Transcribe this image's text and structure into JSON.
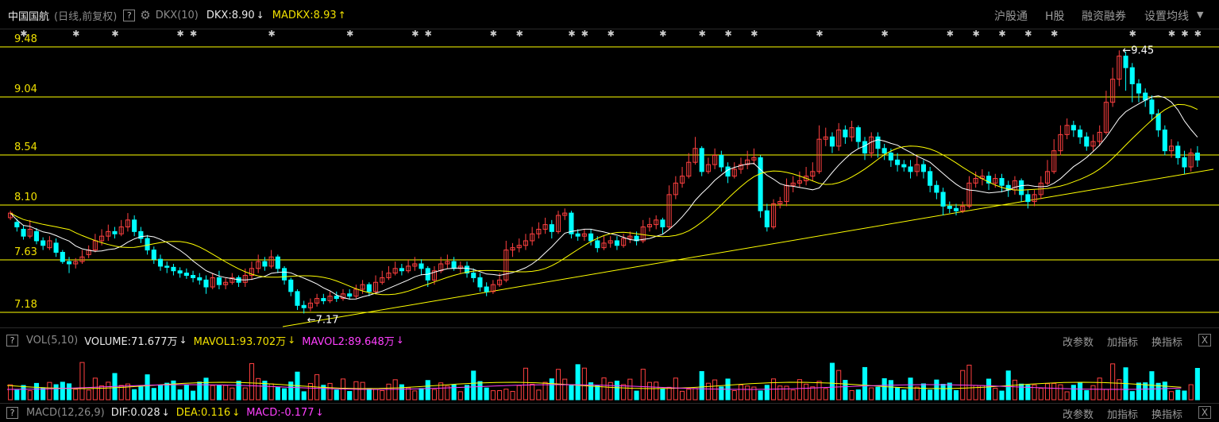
{
  "top_bar": {
    "stock_name": "中国国航",
    "period_info": "(日线,前复权)",
    "help_label": "?",
    "indicator_name": "DKX(10)",
    "dkx": "DKX:8.90",
    "dkx_dir": "↓",
    "madkx": "MADKX:8.93",
    "madkx_dir": "↑",
    "menu": [
      "沪股通",
      "H股",
      "融资融券",
      "设置均线"
    ]
  },
  "price_axis": {
    "levels": [
      "9.48",
      "9.04",
      "8.54",
      "8.10",
      "7.63",
      "7.18"
    ]
  },
  "price_annotations": {
    "high_label": "9.45",
    "low_label": "7.17"
  },
  "volume_panel": {
    "name": "VOL(5,10)",
    "volume": "VOLUME:71.677万",
    "volume_dir": "↓",
    "mavol1": "MAVOL1:93.702万",
    "mavol1_dir": "↓",
    "mavol2": "MAVOL2:89.648万",
    "mavol2_dir": "↓",
    "buttons": [
      "改参数",
      "加指标",
      "换指标"
    ],
    "close_label": "X"
  },
  "macd_panel": {
    "name": "MACD(12,26,9)",
    "dif": "DIF:0.028",
    "dif_dir": "↓",
    "dea": "DEA:0.116",
    "dea_dir": "↓",
    "macd": "MACD:-0.177",
    "macd_dir": "↓",
    "buttons": [
      "改参数",
      "加指标",
      "换指标"
    ],
    "close_label": "X"
  },
  "colors": {
    "up": "#ff4040",
    "down": "#00ffff",
    "dkx_line": "#ffffff",
    "madkx_line": "#ffff00",
    "level_line": "#ffff00",
    "star": "#cccccc"
  },
  "chart_data": {
    "type": "candlestick",
    "y_axis_levels": [
      9.48,
      9.04,
      8.54,
      8.1,
      7.63,
      7.18
    ],
    "y_range": [
      7.0,
      9.6
    ],
    "candles": [
      [
        8.0,
        8.04,
        8.06,
        7.98
      ],
      [
        7.96,
        7.92,
        7.99,
        7.88
      ],
      [
        7.9,
        7.84,
        7.93,
        7.81
      ],
      [
        7.84,
        7.9,
        7.98,
        7.82
      ],
      [
        7.88,
        7.8,
        7.91,
        7.77
      ],
      [
        7.8,
        7.76,
        7.83,
        7.72
      ],
      [
        7.74,
        7.8,
        7.84,
        7.72
      ],
      [
        7.78,
        7.7,
        7.82,
        7.66
      ],
      [
        7.7,
        7.62,
        7.72,
        7.6
      ],
      [
        7.62,
        7.6,
        7.66,
        7.52
      ],
      [
        7.6,
        7.62,
        7.65,
        7.56
      ],
      [
        7.62,
        7.66,
        7.72,
        7.6
      ],
      [
        7.68,
        7.72,
        7.76,
        7.65
      ],
      [
        7.72,
        7.8,
        7.86,
        7.7
      ],
      [
        7.8,
        7.84,
        7.9,
        7.76
      ],
      [
        7.84,
        7.88,
        7.94,
        7.8
      ],
      [
        7.88,
        7.86,
        7.92,
        7.82
      ],
      [
        7.86,
        7.92,
        7.98,
        7.84
      ],
      [
        7.92,
        7.98,
        8.04,
        7.88
      ],
      [
        7.98,
        7.88,
        8.02,
        7.84
      ],
      [
        7.88,
        7.82,
        7.92,
        7.78
      ],
      [
        7.82,
        7.72,
        7.85,
        7.68
      ],
      [
        7.72,
        7.64,
        7.75,
        7.6
      ],
      [
        7.64,
        7.58,
        7.68,
        7.54
      ],
      [
        7.58,
        7.57,
        7.62,
        7.52
      ],
      [
        7.57,
        7.54,
        7.6,
        7.5
      ],
      [
        7.54,
        7.52,
        7.57,
        7.48
      ],
      [
        7.52,
        7.5,
        7.56,
        7.47
      ],
      [
        7.5,
        7.48,
        7.54,
        7.44
      ],
      [
        7.48,
        7.46,
        7.52,
        7.42
      ],
      [
        7.46,
        7.4,
        7.5,
        7.34
      ],
      [
        7.4,
        7.48,
        7.52,
        7.38
      ],
      [
        7.48,
        7.42,
        7.54,
        7.38
      ],
      [
        7.42,
        7.44,
        7.48,
        7.38
      ],
      [
        7.44,
        7.48,
        7.52,
        7.42
      ],
      [
        7.48,
        7.44,
        7.5,
        7.4
      ],
      [
        7.44,
        7.5,
        7.56,
        7.4
      ],
      [
        7.5,
        7.56,
        7.62,
        7.46
      ],
      [
        7.56,
        7.62,
        7.68,
        7.52
      ],
      [
        7.62,
        7.58,
        7.66,
        7.54
      ],
      [
        7.58,
        7.66,
        7.72,
        7.56
      ],
      [
        7.66,
        7.56,
        7.68,
        7.52
      ],
      [
        7.56,
        7.46,
        7.58,
        7.42
      ],
      [
        7.46,
        7.36,
        7.48,
        7.32
      ],
      [
        7.36,
        7.24,
        7.38,
        7.2
      ],
      [
        7.24,
        7.22,
        7.28,
        7.17
      ],
      [
        7.22,
        7.26,
        7.3,
        7.19
      ],
      [
        7.26,
        7.3,
        7.34,
        7.23
      ],
      [
        7.3,
        7.28,
        7.34,
        7.25
      ],
      [
        7.28,
        7.32,
        7.36,
        7.26
      ],
      [
        7.32,
        7.3,
        7.36,
        7.27
      ],
      [
        7.3,
        7.34,
        7.38,
        7.28
      ],
      [
        7.34,
        7.32,
        7.38,
        7.29
      ],
      [
        7.32,
        7.38,
        7.42,
        7.3
      ],
      [
        7.38,
        7.42,
        7.46,
        7.34
      ],
      [
        7.42,
        7.36,
        7.44,
        7.32
      ],
      [
        7.36,
        7.44,
        7.5,
        7.34
      ],
      [
        7.44,
        7.48,
        7.54,
        7.42
      ],
      [
        7.48,
        7.52,
        7.58,
        7.46
      ],
      [
        7.52,
        7.56,
        7.62,
        7.5
      ],
      [
        7.56,
        7.54,
        7.6,
        7.5
      ],
      [
        7.54,
        7.58,
        7.64,
        7.52
      ],
      [
        7.58,
        7.6,
        7.66,
        7.54
      ],
      [
        7.6,
        7.56,
        7.64,
        7.5
      ],
      [
        7.56,
        7.46,
        7.58,
        7.4
      ],
      [
        7.46,
        7.54,
        7.58,
        7.42
      ],
      [
        7.54,
        7.6,
        7.66,
        7.52
      ],
      [
        7.6,
        7.62,
        7.68,
        7.56
      ],
      [
        7.62,
        7.56,
        7.66,
        7.54
      ],
      [
        7.56,
        7.58,
        7.62,
        7.52
      ],
      [
        7.58,
        7.52,
        7.62,
        7.48
      ],
      [
        7.52,
        7.48,
        7.56,
        7.44
      ],
      [
        7.48,
        7.4,
        7.52,
        7.36
      ],
      [
        7.4,
        7.36,
        7.44,
        7.32
      ],
      [
        7.36,
        7.42,
        7.46,
        7.34
      ],
      [
        7.42,
        7.46,
        7.52,
        7.4
      ],
      [
        7.46,
        7.72,
        7.8,
        7.44
      ],
      [
        7.72,
        7.74,
        7.78,
        7.66
      ],
      [
        7.74,
        7.76,
        7.82,
        7.7
      ],
      [
        7.76,
        7.8,
        7.86,
        7.72
      ],
      [
        7.8,
        7.86,
        7.92,
        7.76
      ],
      [
        7.86,
        7.9,
        7.96,
        7.82
      ],
      [
        7.9,
        7.94,
        8.0,
        7.86
      ],
      [
        7.94,
        7.88,
        7.98,
        7.82
      ],
      [
        7.88,
        8.02,
        8.06,
        7.86
      ],
      [
        8.02,
        8.04,
        8.08,
        7.98
      ],
      [
        8.04,
        7.86,
        8.06,
        7.82
      ],
      [
        7.86,
        7.84,
        7.9,
        7.8
      ],
      [
        7.84,
        7.86,
        7.9,
        7.8
      ],
      [
        7.86,
        7.8,
        7.9,
        7.76
      ],
      [
        7.8,
        7.74,
        7.84,
        7.7
      ],
      [
        7.74,
        7.78,
        7.84,
        7.72
      ],
      [
        7.78,
        7.8,
        7.84,
        7.74
      ],
      [
        7.8,
        7.76,
        7.84,
        7.72
      ],
      [
        7.76,
        7.82,
        7.86,
        7.74
      ],
      [
        7.82,
        7.84,
        7.88,
        7.78
      ],
      [
        7.84,
        7.8,
        7.88,
        7.76
      ],
      [
        7.8,
        7.92,
        7.98,
        7.78
      ],
      [
        7.92,
        7.94,
        8.0,
        7.88
      ],
      [
        7.94,
        7.98,
        8.02,
        7.9
      ],
      [
        7.98,
        7.92,
        8.0,
        7.86
      ],
      [
        7.92,
        8.2,
        8.28,
        7.9
      ],
      [
        8.2,
        8.3,
        8.36,
        8.16
      ],
      [
        8.3,
        8.36,
        8.44,
        8.26
      ],
      [
        8.36,
        8.48,
        8.56,
        8.34
      ],
      [
        8.48,
        8.6,
        8.7,
        8.46
      ],
      [
        8.6,
        8.4,
        8.62,
        8.36
      ],
      [
        8.4,
        8.46,
        8.52,
        8.38
      ],
      [
        8.46,
        8.54,
        8.6,
        8.42
      ],
      [
        8.54,
        8.44,
        8.58,
        8.4
      ],
      [
        8.44,
        8.36,
        8.48,
        8.3
      ],
      [
        8.36,
        8.42,
        8.48,
        8.34
      ],
      [
        8.42,
        8.46,
        8.52,
        8.38
      ],
      [
        8.46,
        8.5,
        8.58,
        8.42
      ],
      [
        8.5,
        8.52,
        8.6,
        8.46
      ],
      [
        8.52,
        8.06,
        8.54,
        8.0
      ],
      [
        8.06,
        7.92,
        8.12,
        7.88
      ],
      [
        7.92,
        8.12,
        8.16,
        7.9
      ],
      [
        8.12,
        8.14,
        8.18,
        8.08
      ],
      [
        8.14,
        8.28,
        8.34,
        8.1
      ],
      [
        8.28,
        8.3,
        8.36,
        8.22
      ],
      [
        8.3,
        8.32,
        8.4,
        8.26
      ],
      [
        8.32,
        8.36,
        8.44,
        8.28
      ],
      [
        8.36,
        8.4,
        8.48,
        8.32
      ],
      [
        8.4,
        8.68,
        8.8,
        8.38
      ],
      [
        8.68,
        8.7,
        8.78,
        8.62
      ],
      [
        8.7,
        8.62,
        8.74,
        8.56
      ],
      [
        8.62,
        8.76,
        8.82,
        8.58
      ],
      [
        8.76,
        8.7,
        8.8,
        8.64
      ],
      [
        8.7,
        8.78,
        8.84,
        8.66
      ],
      [
        8.78,
        8.66,
        8.8,
        8.6
      ],
      [
        8.66,
        8.56,
        8.7,
        8.5
      ],
      [
        8.56,
        8.7,
        8.74,
        8.52
      ],
      [
        8.7,
        8.6,
        8.74,
        8.52
      ],
      [
        8.6,
        8.56,
        8.64,
        8.5
      ],
      [
        8.56,
        8.5,
        8.6,
        8.44
      ],
      [
        8.5,
        8.46,
        8.56,
        8.4
      ],
      [
        8.46,
        8.44,
        8.5,
        8.4
      ],
      [
        8.44,
        8.4,
        8.5,
        8.34
      ],
      [
        8.4,
        8.46,
        8.54,
        8.36
      ],
      [
        8.46,
        8.4,
        8.5,
        8.34
      ],
      [
        8.4,
        8.28,
        8.44,
        8.22
      ],
      [
        8.28,
        8.22,
        8.32,
        8.16
      ],
      [
        8.22,
        8.1,
        8.26,
        8.02
      ],
      [
        8.1,
        8.08,
        8.14,
        8.04
      ],
      [
        8.08,
        8.06,
        8.12,
        8.02
      ],
      [
        8.06,
        8.1,
        8.14,
        8.04
      ],
      [
        8.1,
        8.3,
        8.36,
        8.08
      ],
      [
        8.3,
        8.34,
        8.4,
        8.26
      ],
      [
        8.34,
        8.36,
        8.42,
        8.28
      ],
      [
        8.36,
        8.3,
        8.4,
        8.24
      ],
      [
        8.3,
        8.34,
        8.38,
        8.26
      ],
      [
        8.34,
        8.28,
        8.38,
        8.22
      ],
      [
        8.28,
        8.24,
        8.32,
        8.18
      ],
      [
        8.24,
        8.32,
        8.36,
        8.2
      ],
      [
        8.32,
        8.2,
        8.34,
        8.14
      ],
      [
        8.2,
        8.14,
        8.24,
        8.08
      ],
      [
        8.14,
        8.2,
        8.24,
        8.1
      ],
      [
        8.2,
        8.3,
        8.36,
        8.16
      ],
      [
        8.3,
        8.4,
        8.5,
        8.28
      ],
      [
        8.4,
        8.58,
        8.68,
        8.38
      ],
      [
        8.58,
        8.72,
        8.8,
        8.54
      ],
      [
        8.72,
        8.8,
        8.86,
        8.68
      ],
      [
        8.8,
        8.76,
        8.84,
        8.7
      ],
      [
        8.76,
        8.7,
        8.8,
        8.64
      ],
      [
        8.7,
        8.62,
        8.74,
        8.58
      ],
      [
        8.62,
        8.66,
        8.72,
        8.58
      ],
      [
        8.66,
        8.74,
        8.8,
        8.62
      ],
      [
        8.74,
        9.0,
        9.1,
        8.72
      ],
      [
        9.0,
        9.2,
        9.3,
        8.96
      ],
      [
        9.2,
        9.4,
        9.45,
        9.14
      ],
      [
        9.4,
        9.3,
        9.44,
        9.1
      ],
      [
        9.3,
        9.16,
        9.34,
        9.0
      ],
      [
        9.16,
        9.08,
        9.2,
        9.0
      ],
      [
        9.08,
        9.02,
        9.12,
        8.96
      ],
      [
        9.02,
        8.9,
        9.06,
        8.84
      ],
      [
        8.9,
        8.76,
        8.94,
        8.7
      ],
      [
        8.76,
        8.58,
        8.8,
        8.54
      ],
      [
        8.58,
        8.62,
        8.68,
        8.52
      ],
      [
        8.62,
        8.52,
        8.66,
        8.46
      ],
      [
        8.52,
        8.44,
        8.58,
        8.38
      ],
      [
        8.44,
        8.56,
        8.6,
        8.4
      ],
      [
        8.56,
        8.5,
        8.62,
        8.44
      ]
    ]
  }
}
